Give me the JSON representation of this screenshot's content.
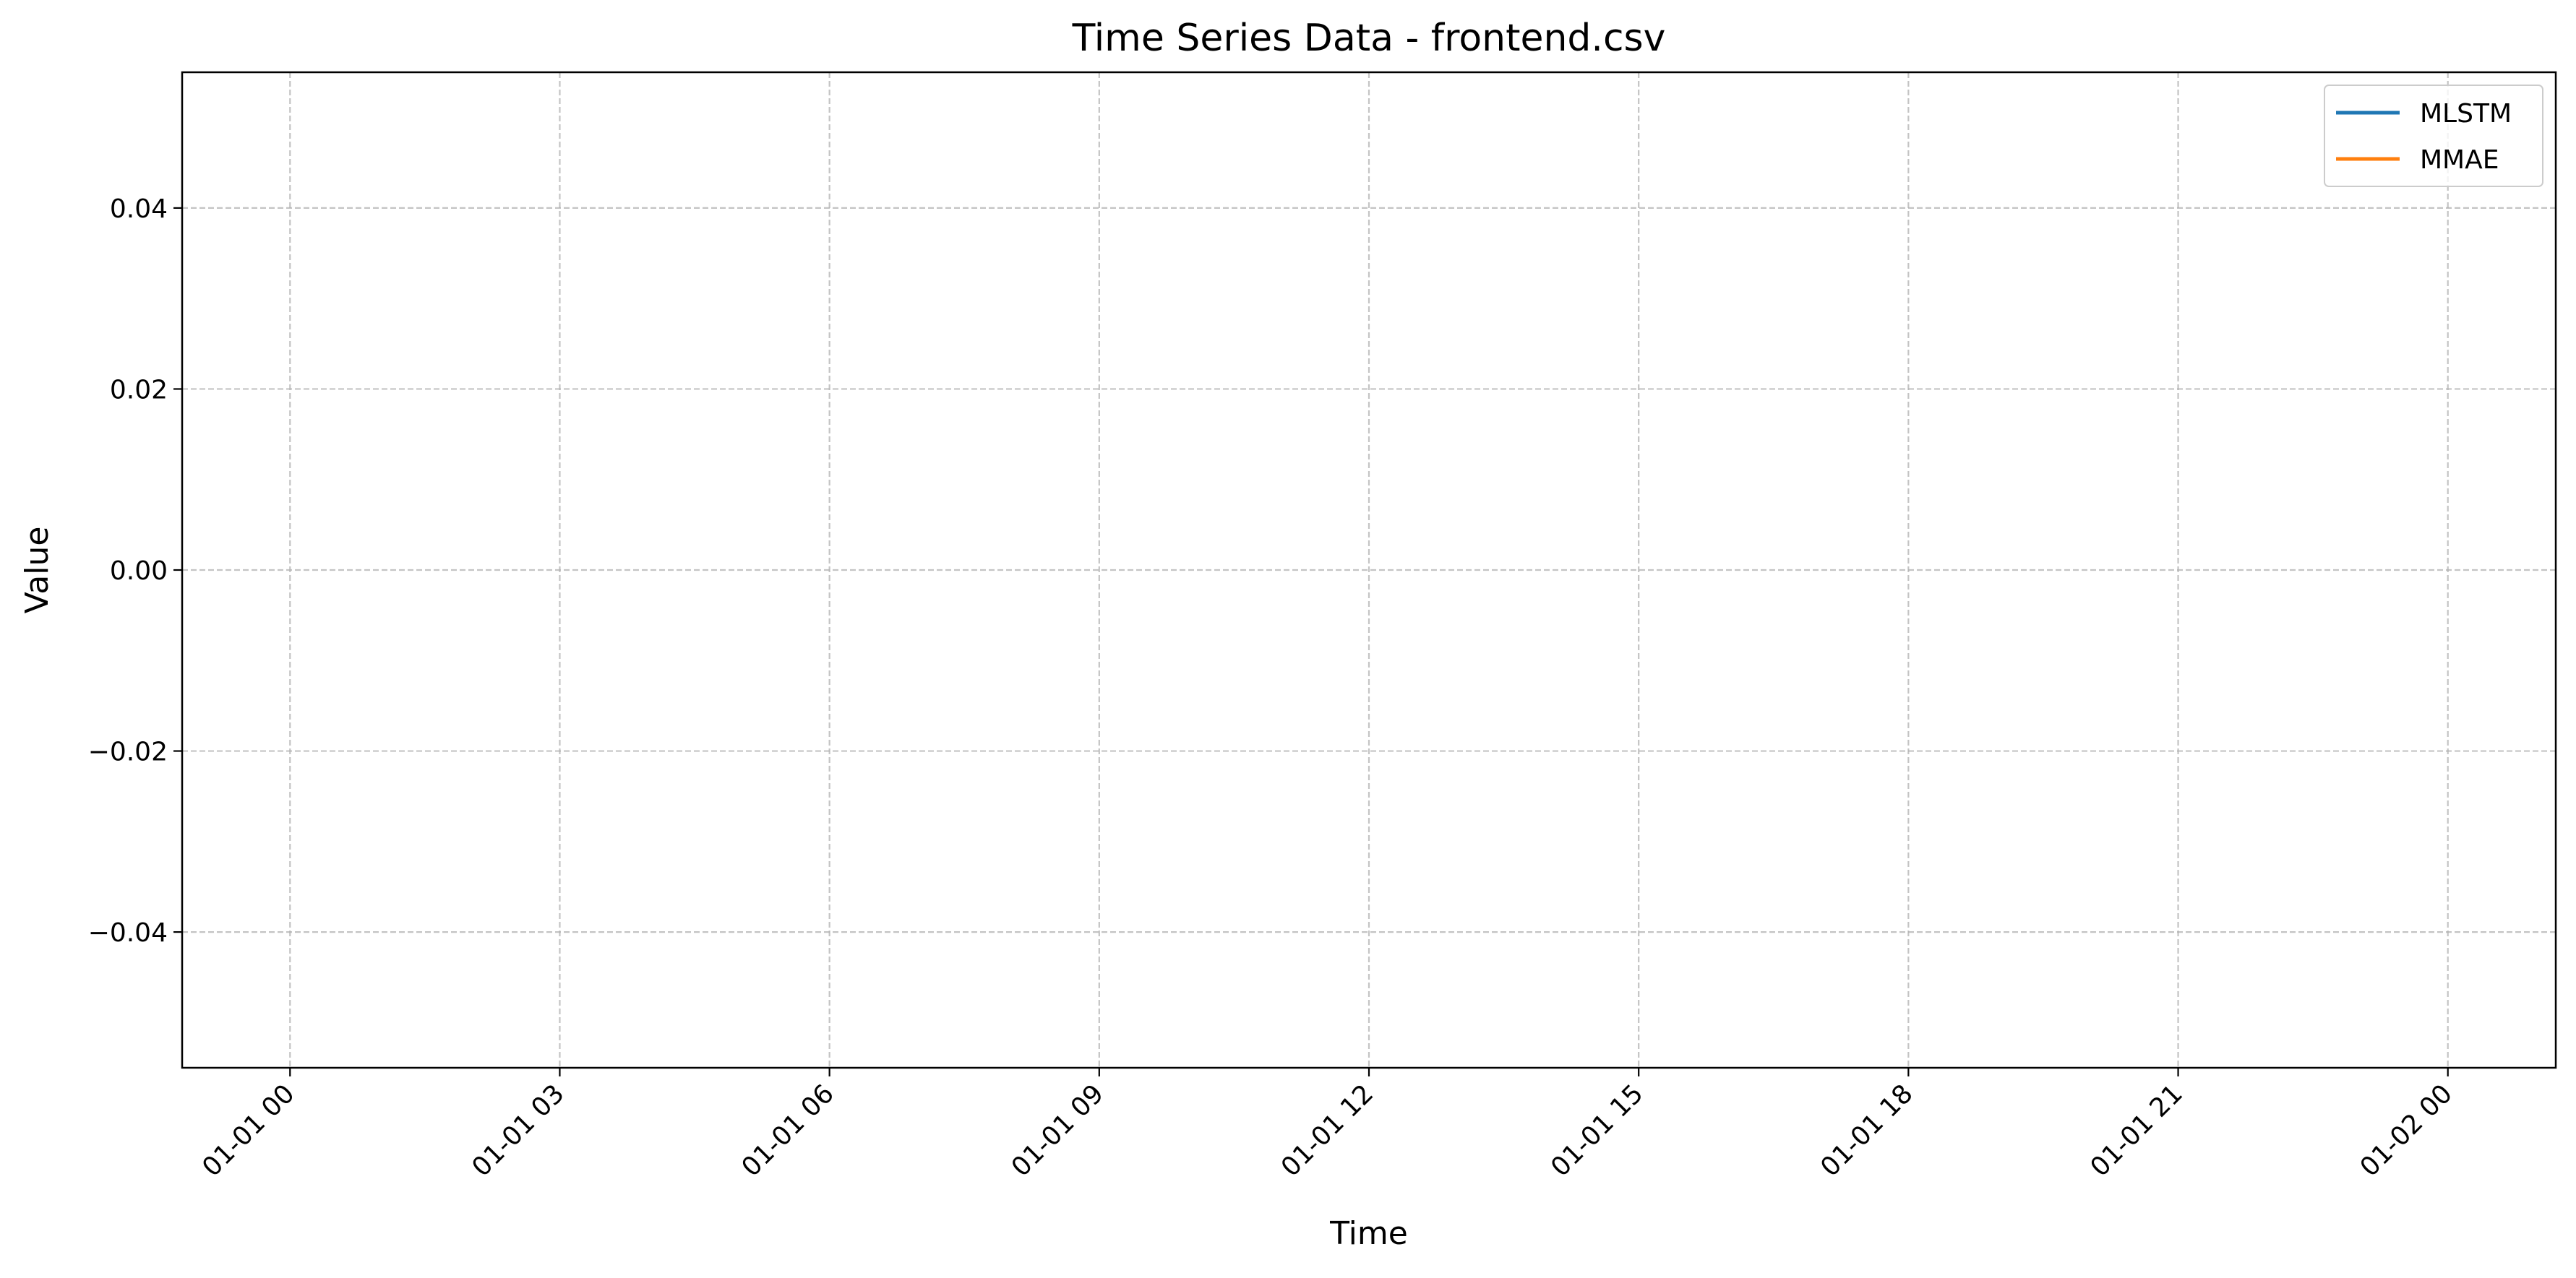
{
  "chart_data": {
    "type": "line",
    "title": "Time Series Data - frontend.csv",
    "xlabel": "Time",
    "ylabel": "Value",
    "x_ticks": [
      "01-01 00",
      "01-01 03",
      "01-01 06",
      "01-01 09",
      "01-01 12",
      "01-01 15",
      "01-01 18",
      "01-01 21",
      "01-02 00"
    ],
    "y_ticks": [
      {
        "value": 0.04,
        "label": "0.04"
      },
      {
        "value": 0.02,
        "label": "0.02"
      },
      {
        "value": 0.0,
        "label": "0.00"
      },
      {
        "value": -0.02,
        "label": "−0.02"
      },
      {
        "value": -0.04,
        "label": "−0.04"
      }
    ],
    "xlim_hours": [
      -1.2,
      25.2
    ],
    "ylim": [
      -0.055,
      0.055
    ],
    "grid": true,
    "legend_position": "upper right",
    "series": [
      {
        "name": "MLSTM",
        "color": "#1f77b4",
        "values": []
      },
      {
        "name": "MMAE",
        "color": "#ff7f0e",
        "values": []
      }
    ]
  }
}
